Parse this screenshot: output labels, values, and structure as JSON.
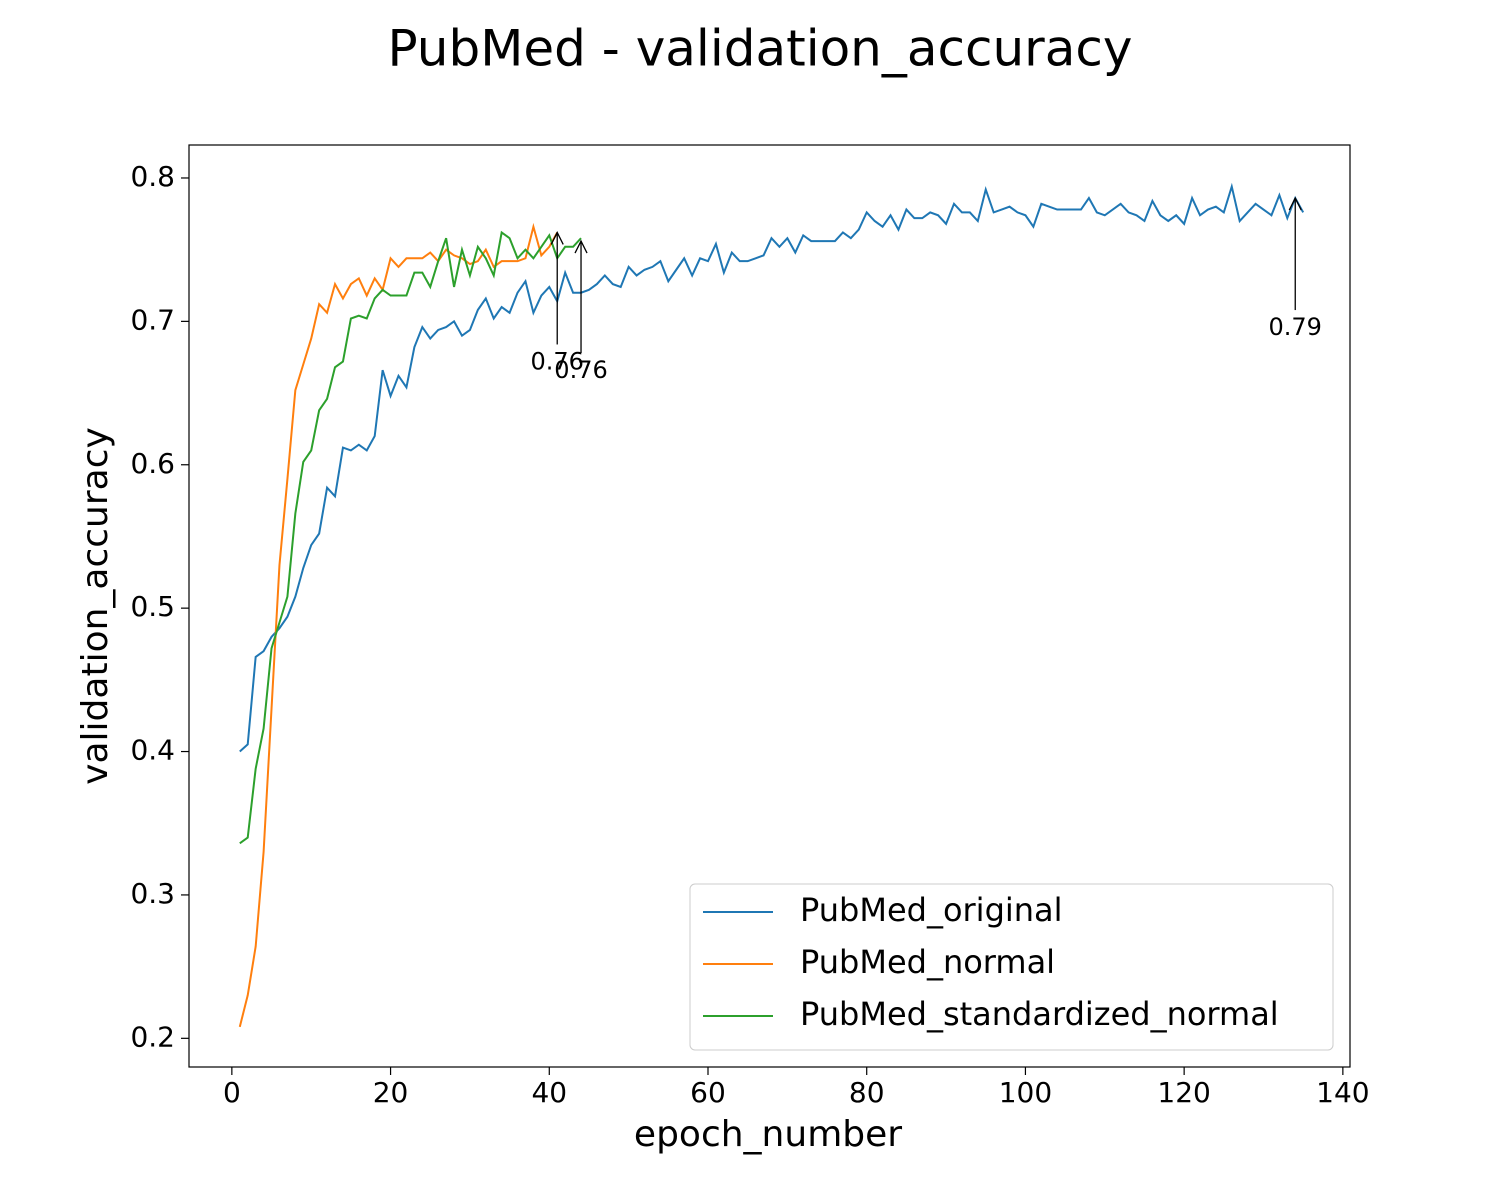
{
  "chart_data": {
    "type": "line",
    "title": "PubMed - validation_accuracy",
    "x_label": "epoch_number",
    "y_label": "validation_accuracy",
    "xlim": [
      -5.4,
      140.9
    ],
    "ylim": [
      0.18,
      0.823
    ],
    "xticks": [
      0,
      20,
      40,
      60,
      80,
      100,
      120,
      140
    ],
    "yticks": [
      0.2,
      0.3,
      0.4,
      0.5,
      0.6,
      0.7,
      0.8
    ],
    "legend": "lower right",
    "series": [
      {
        "name": "PubMed_original",
        "color": "#1f77b4",
        "x": [
          1,
          2,
          3,
          4,
          5,
          6,
          7,
          8,
          9,
          10,
          11,
          12,
          13,
          14,
          15,
          16,
          17,
          18,
          19,
          20,
          21,
          22,
          23,
          24,
          25,
          26,
          27,
          28,
          29,
          30,
          31,
          32,
          33,
          34,
          35,
          36,
          37,
          38,
          39,
          40,
          41,
          42,
          43,
          44,
          45,
          46,
          47,
          48,
          49,
          50,
          51,
          52,
          53,
          54,
          55,
          56,
          57,
          58,
          59,
          60,
          61,
          62,
          63,
          64,
          65,
          66,
          67,
          68,
          69,
          70,
          71,
          72,
          73,
          74,
          75,
          76,
          77,
          78,
          79,
          80,
          81,
          82,
          83,
          84,
          85,
          86,
          87,
          88,
          89,
          90,
          91,
          92,
          93,
          94,
          95,
          96,
          97,
          98,
          99,
          100,
          101,
          102,
          103,
          104,
          105,
          106,
          107,
          108,
          109,
          110,
          111,
          112,
          113,
          114,
          115,
          116,
          117,
          118,
          119,
          120,
          121,
          122,
          123,
          124,
          125,
          126,
          127,
          128,
          129,
          130,
          131,
          132,
          133,
          134,
          135
        ],
        "values": [
          0.4,
          0.405,
          0.466,
          0.47,
          0.48,
          0.486,
          0.494,
          0.508,
          0.528,
          0.544,
          0.552,
          0.584,
          0.578,
          0.612,
          0.61,
          0.614,
          0.61,
          0.62,
          0.666,
          0.648,
          0.662,
          0.654,
          0.682,
          0.696,
          0.688,
          0.694,
          0.696,
          0.7,
          0.69,
          0.694,
          0.708,
          0.716,
          0.702,
          0.71,
          0.706,
          0.72,
          0.728,
          0.706,
          0.718,
          0.724,
          0.714,
          0.734,
          0.72,
          0.72,
          0.722,
          0.726,
          0.732,
          0.726,
          0.724,
          0.738,
          0.732,
          0.736,
          0.738,
          0.742,
          0.728,
          0.736,
          0.744,
          0.732,
          0.744,
          0.742,
          0.754,
          0.734,
          0.748,
          0.742,
          0.742,
          0.744,
          0.746,
          0.758,
          0.752,
          0.758,
          0.748,
          0.76,
          0.756,
          0.756,
          0.756,
          0.756,
          0.762,
          0.758,
          0.764,
          0.776,
          0.77,
          0.766,
          0.774,
          0.764,
          0.778,
          0.772,
          0.772,
          0.776,
          0.774,
          0.768,
          0.782,
          0.776,
          0.776,
          0.77,
          0.792,
          0.776,
          0.778,
          0.78,
          0.776,
          0.774,
          0.766,
          0.782,
          0.78,
          0.778,
          0.778,
          0.778,
          0.778,
          0.786,
          0.776,
          0.774,
          0.778,
          0.782,
          0.776,
          0.774,
          0.77,
          0.784,
          0.774,
          0.77,
          0.774,
          0.768,
          0.786,
          0.774,
          0.778,
          0.78,
          0.776,
          0.794,
          0.77,
          0.776,
          0.782,
          0.778,
          0.774,
          0.788,
          0.772,
          0.786,
          0.776
        ]
      },
      {
        "name": "PubMed_normal",
        "color": "#ff7f0e",
        "x": [
          1,
          2,
          3,
          4,
          5,
          6,
          7,
          8,
          9,
          10,
          11,
          12,
          13,
          14,
          15,
          16,
          17,
          18,
          19,
          20,
          21,
          22,
          23,
          24,
          25,
          26,
          27,
          28,
          29,
          30,
          31,
          32,
          33,
          34,
          35,
          36,
          37,
          38,
          39,
          40,
          41
        ],
        "values": [
          0.208,
          0.23,
          0.264,
          0.33,
          0.43,
          0.53,
          0.59,
          0.652,
          0.67,
          0.688,
          0.712,
          0.706,
          0.726,
          0.716,
          0.726,
          0.73,
          0.718,
          0.73,
          0.722,
          0.744,
          0.738,
          0.744,
          0.744,
          0.744,
          0.748,
          0.742,
          0.75,
          0.746,
          0.744,
          0.74,
          0.742,
          0.75,
          0.738,
          0.742,
          0.742,
          0.742,
          0.744,
          0.766,
          0.746,
          0.752,
          0.762
        ]
      },
      {
        "name": "PubMed_standardized_normal",
        "color": "#2ca02c",
        "x": [
          1,
          2,
          3,
          4,
          5,
          6,
          7,
          8,
          9,
          10,
          11,
          12,
          13,
          14,
          15,
          16,
          17,
          18,
          19,
          20,
          21,
          22,
          23,
          24,
          25,
          26,
          27,
          28,
          29,
          30,
          31,
          32,
          33,
          34,
          35,
          36,
          37,
          38,
          39,
          40,
          41,
          42,
          43,
          44
        ],
        "values": [
          0.336,
          0.34,
          0.388,
          0.416,
          0.472,
          0.49,
          0.508,
          0.566,
          0.602,
          0.61,
          0.638,
          0.646,
          0.668,
          0.672,
          0.702,
          0.704,
          0.702,
          0.716,
          0.722,
          0.718,
          0.718,
          0.718,
          0.734,
          0.734,
          0.724,
          0.742,
          0.758,
          0.724,
          0.75,
          0.732,
          0.752,
          0.744,
          0.732,
          0.762,
          0.758,
          0.744,
          0.75,
          0.744,
          0.752,
          0.76,
          0.744,
          0.752,
          0.752,
          0.758
        ]
      }
    ],
    "annotations": [
      {
        "text": "0.76",
        "x": 41,
        "y": 0.762
      },
      {
        "text": "0.76",
        "x": 44,
        "y": 0.756
      },
      {
        "text": "0.79",
        "x": 134,
        "y": 0.786
      }
    ]
  }
}
